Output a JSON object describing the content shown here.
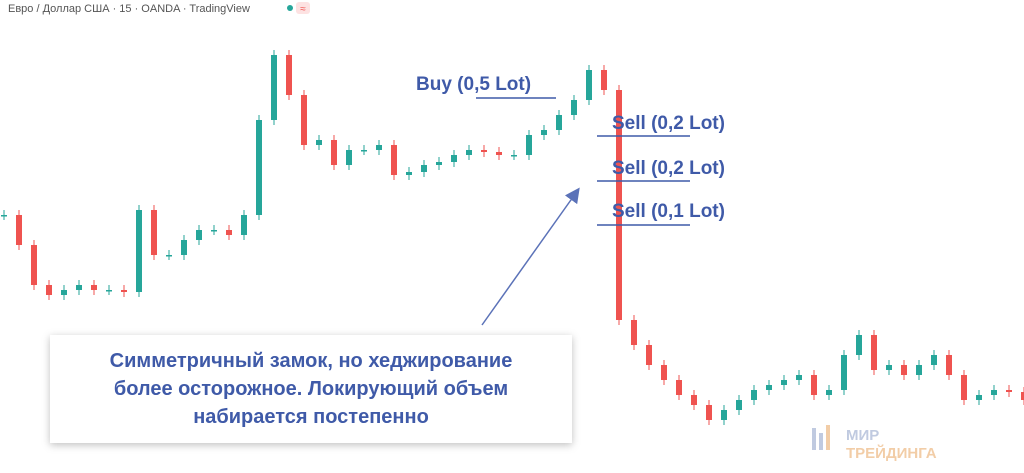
{
  "header": {
    "symbol": "Евро / Доллар США · 15 · OANDA · TradingView",
    "badge": "≈"
  },
  "chart_data": {
    "type": "candlestick",
    "values": [
      258,
      228,
      188,
      178,
      183,
      188,
      183,
      183,
      181,
      263,
      218,
      218,
      233,
      243,
      243,
      238,
      258,
      353,
      418,
      378,
      328,
      333,
      308,
      323,
      323,
      328,
      298,
      301,
      308,
      311,
      318,
      323,
      321,
      318,
      318,
      338,
      343,
      358,
      373,
      403,
      383,
      153,
      128,
      108,
      93,
      78,
      68,
      53,
      63,
      73,
      83,
      88,
      93,
      98,
      78,
      83,
      118,
      138,
      103,
      108,
      98,
      108,
      118,
      98,
      73,
      78,
      83,
      81,
      73
    ],
    "ylim": [
      0,
      473
    ],
    "up_color": "#26a69a",
    "down_color": "#ef5350"
  },
  "annotations": [
    {
      "text": "Buy (0,5 Lot)"
    },
    {
      "text": "Sell (0,2 Lot)"
    },
    {
      "text": "Sell (0,2 Lot)"
    },
    {
      "text": "Sell (0,1 Lot)"
    }
  ],
  "callout": {
    "lines": [
      "Симметричный замок, но хеджирование",
      "более осторожное. Локирующий объем",
      "набирается постепенно"
    ]
  },
  "watermark": {
    "line1": "МИР",
    "line2": "ТРЕЙДИНГА"
  }
}
